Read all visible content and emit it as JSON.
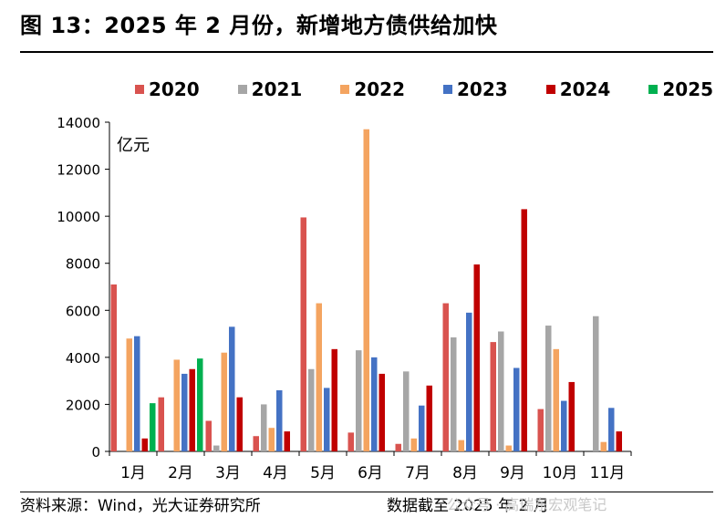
{
  "header": {
    "title": "图 13：2025 年 2 月份，新增地方债供给加快"
  },
  "footer": {
    "source": "资料来源：Wind，光大证券研究所",
    "date": "数据截至 2025 年 2 月",
    "watermark": "公众号 · 高瑞东宏观笔记"
  },
  "chart_data": {
    "type": "bar",
    "unit_label": "亿元",
    "categories": [
      "1月",
      "2月",
      "3月",
      "4月",
      "5月",
      "6月",
      "7月",
      "8月",
      "9月",
      "10月",
      "11月"
    ],
    "ylim": [
      0,
      14000
    ],
    "yticks": [
      "0",
      "2000",
      "4000",
      "6000",
      "8000",
      "10000",
      "12000",
      "14000"
    ],
    "legend_position": "top",
    "grid": false,
    "series": [
      {
        "name": "2020",
        "color": "#d9534f",
        "values": [
          7100,
          2300,
          1300,
          650,
          9950,
          800,
          320,
          6300,
          4650,
          1800,
          null
        ]
      },
      {
        "name": "2021",
        "color": "#a6a6a6",
        "values": [
          null,
          0,
          250,
          2000,
          3500,
          4300,
          3400,
          4850,
          5100,
          5350,
          5750
        ]
      },
      {
        "name": "2022",
        "color": "#f4a460",
        "values": [
          4800,
          3900,
          4200,
          1000,
          6300,
          13700,
          550,
          480,
          250,
          4350,
          400
        ]
      },
      {
        "name": "2023",
        "color": "#4472c4",
        "values": [
          4900,
          3300,
          5300,
          2600,
          2700,
          4000,
          1950,
          5900,
          3550,
          2150,
          1850
        ]
      },
      {
        "name": "2024",
        "color": "#c00000",
        "values": [
          550,
          3500,
          2300,
          850,
          4350,
          3300,
          2800,
          7950,
          10300,
          2950,
          850
        ]
      },
      {
        "name": "2025",
        "color": "#00b050",
        "values": [
          2050,
          3950,
          null,
          null,
          null,
          null,
          null,
          null,
          null,
          null,
          null
        ]
      }
    ]
  }
}
